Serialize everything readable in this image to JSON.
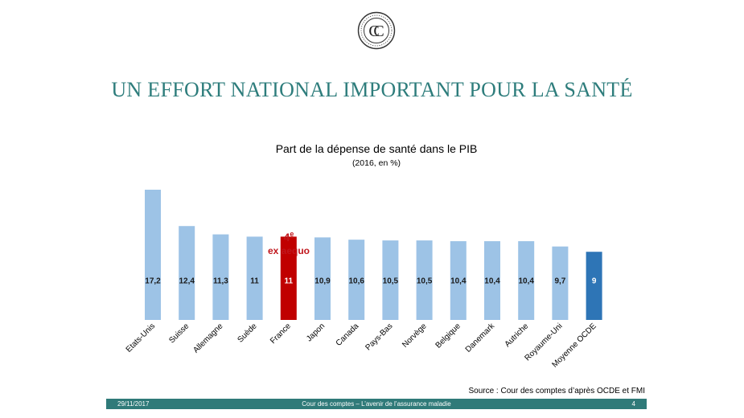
{
  "slide": {
    "title": "UN EFFORT NATIONAL IMPORTANT POUR LA SANTÉ",
    "logo_letters": "CC"
  },
  "annotation": {
    "rank": "4",
    "rank_sup": "e",
    "line2": "ex aequo",
    "color": "#c0161c"
  },
  "source": "Source : Cour des comptes d’après OCDE et FMI",
  "footer": {
    "date": "29/11/2017",
    "center": "Cour des comptes – L’avenir de l’assurance maladie",
    "page": "4"
  },
  "colors": {
    "default_bar": "#9dc3e6",
    "highlight_bar": "#c00000",
    "average_bar": "#2e75b6",
    "title_teal": "#2e7d7c"
  },
  "chart_data": {
    "type": "bar",
    "title": "Part de la dépense de santé dans le PIB",
    "subtitle": "(2016, en %)",
    "categories": [
      "Etats-Unis",
      "Suisse",
      "Allemagne",
      "Suède",
      "France",
      "Japon",
      "Canada",
      "Pays-Bas",
      "Norvège",
      "Belgique",
      "Danemark",
      "Autriche",
      "Royaume-Uni",
      "Moyenne OCDE"
    ],
    "values": [
      17.2,
      12.4,
      11.3,
      11,
      11,
      10.9,
      10.6,
      10.5,
      10.5,
      10.4,
      10.4,
      10.4,
      9.7,
      9
    ],
    "value_labels": [
      "17,2",
      "12,4",
      "11,3",
      "11",
      "11",
      "10,9",
      "10,6",
      "10,5",
      "10,5",
      "10,4",
      "10,4",
      "10,4",
      "9,7",
      "9"
    ],
    "highlight": "France",
    "average": "Moyenne OCDE",
    "ylim": [
      0,
      17.2
    ],
    "grid": false,
    "legend": "none"
  }
}
